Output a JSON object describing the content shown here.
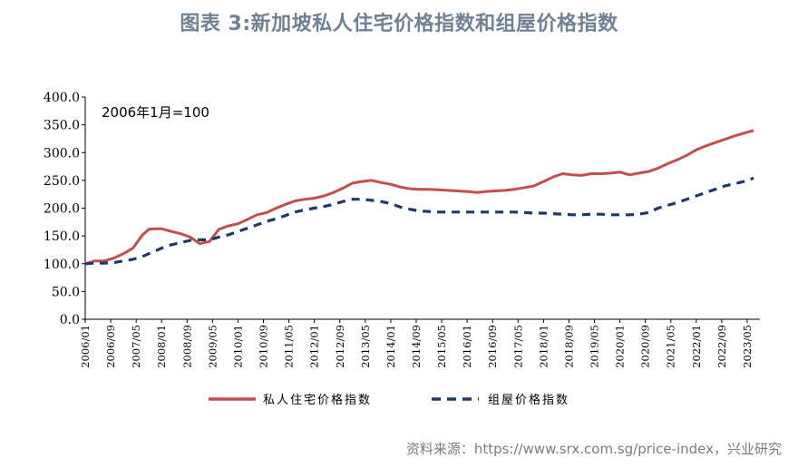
{
  "title": "图表 3:新加坡私人住宅价格指数和组屋价格指数",
  "source": "资料来源：https://www.srx.com.sg/price-index，兴业研究",
  "chart_data": {
    "type": "line",
    "annotation": "2006年1月=100",
    "ylim": [
      0,
      400
    ],
    "yticks": [
      "0.0",
      "50.0",
      "100.0",
      "150.0",
      "200.0",
      "250.0",
      "300.0",
      "350.0",
      "400.0"
    ],
    "xticks": [
      "2006/01",
      "2006/09",
      "2007/05",
      "2008/01",
      "2008/09",
      "2009/05",
      "2010/01",
      "2010/09",
      "2011/05",
      "2012/01",
      "2012/09",
      "2013/05",
      "2014/01",
      "2014/09",
      "2015/05",
      "2016/01",
      "2016/09",
      "2017/05",
      "2018/01",
      "2018/09",
      "2019/05",
      "2020/01",
      "2020/09",
      "2021/05",
      "2022/01",
      "2022/09",
      "2023/05"
    ],
    "x": [
      "2006/01",
      "2006/04",
      "2006/07",
      "2006/10",
      "2007/01",
      "2007/04",
      "2007/07",
      "2007/09",
      "2007/11",
      "2008/01",
      "2008/04",
      "2008/07",
      "2008/10",
      "2009/01",
      "2009/04",
      "2009/07",
      "2009/10",
      "2010/01",
      "2010/04",
      "2010/07",
      "2010/10",
      "2011/01",
      "2011/04",
      "2011/07",
      "2011/10",
      "2012/01",
      "2012/04",
      "2012/07",
      "2012/10",
      "2013/01",
      "2013/04",
      "2013/07",
      "2013/10",
      "2014/01",
      "2014/04",
      "2014/07",
      "2014/10",
      "2015/01",
      "2015/04",
      "2015/07",
      "2015/10",
      "2016/01",
      "2016/04",
      "2016/07",
      "2016/10",
      "2017/01",
      "2017/04",
      "2017/07",
      "2017/10",
      "2018/01",
      "2018/04",
      "2018/07",
      "2018/10",
      "2019/01",
      "2019/04",
      "2019/07",
      "2019/10",
      "2020/01",
      "2020/04",
      "2020/07",
      "2020/10",
      "2021/01",
      "2021/04",
      "2021/07",
      "2021/10",
      "2022/01",
      "2022/04",
      "2022/07",
      "2022/10",
      "2023/01",
      "2023/04",
      "2023/07"
    ],
    "series": [
      {
        "name": "私人住宅价格指数",
        "color": "#c0504d",
        "style": "solid",
        "values": [
          100,
          105,
          105,
          110,
          118,
          128,
          152,
          162,
          163,
          163,
          158,
          154,
          148,
          136,
          140,
          162,
          168,
          172,
          180,
          188,
          192,
          200,
          207,
          213,
          216,
          218,
          222,
          228,
          236,
          245,
          248,
          250,
          246,
          243,
          238,
          235,
          234,
          234,
          233,
          232,
          231,
          230,
          228,
          230,
          231,
          232,
          234,
          237,
          240,
          248,
          256,
          262,
          260,
          259,
          262,
          262,
          263,
          265,
          260,
          263,
          266,
          272,
          280,
          287,
          295,
          305,
          312,
          318,
          324,
          330,
          335,
          340
        ]
      },
      {
        "name": "组屋价格指数",
        "color": "#1f3864",
        "style": "dashed",
        "values": [
          100,
          101,
          101,
          102,
          105,
          108,
          113,
          118,
          123,
          128,
          134,
          138,
          142,
          143,
          143,
          148,
          152,
          158,
          164,
          170,
          176,
          181,
          187,
          193,
          197,
          200,
          203,
          207,
          212,
          216,
          216,
          214,
          212,
          208,
          202,
          198,
          195,
          194,
          193,
          193,
          193,
          193,
          193,
          193,
          193,
          193,
          193,
          192,
          191,
          191,
          190,
          189,
          188,
          188,
          189,
          189,
          188,
          188,
          188,
          189,
          192,
          200,
          205,
          210,
          216,
          222,
          228,
          234,
          240,
          244,
          248,
          254
        ]
      }
    ],
    "legend": "bottom",
    "grid": false
  }
}
